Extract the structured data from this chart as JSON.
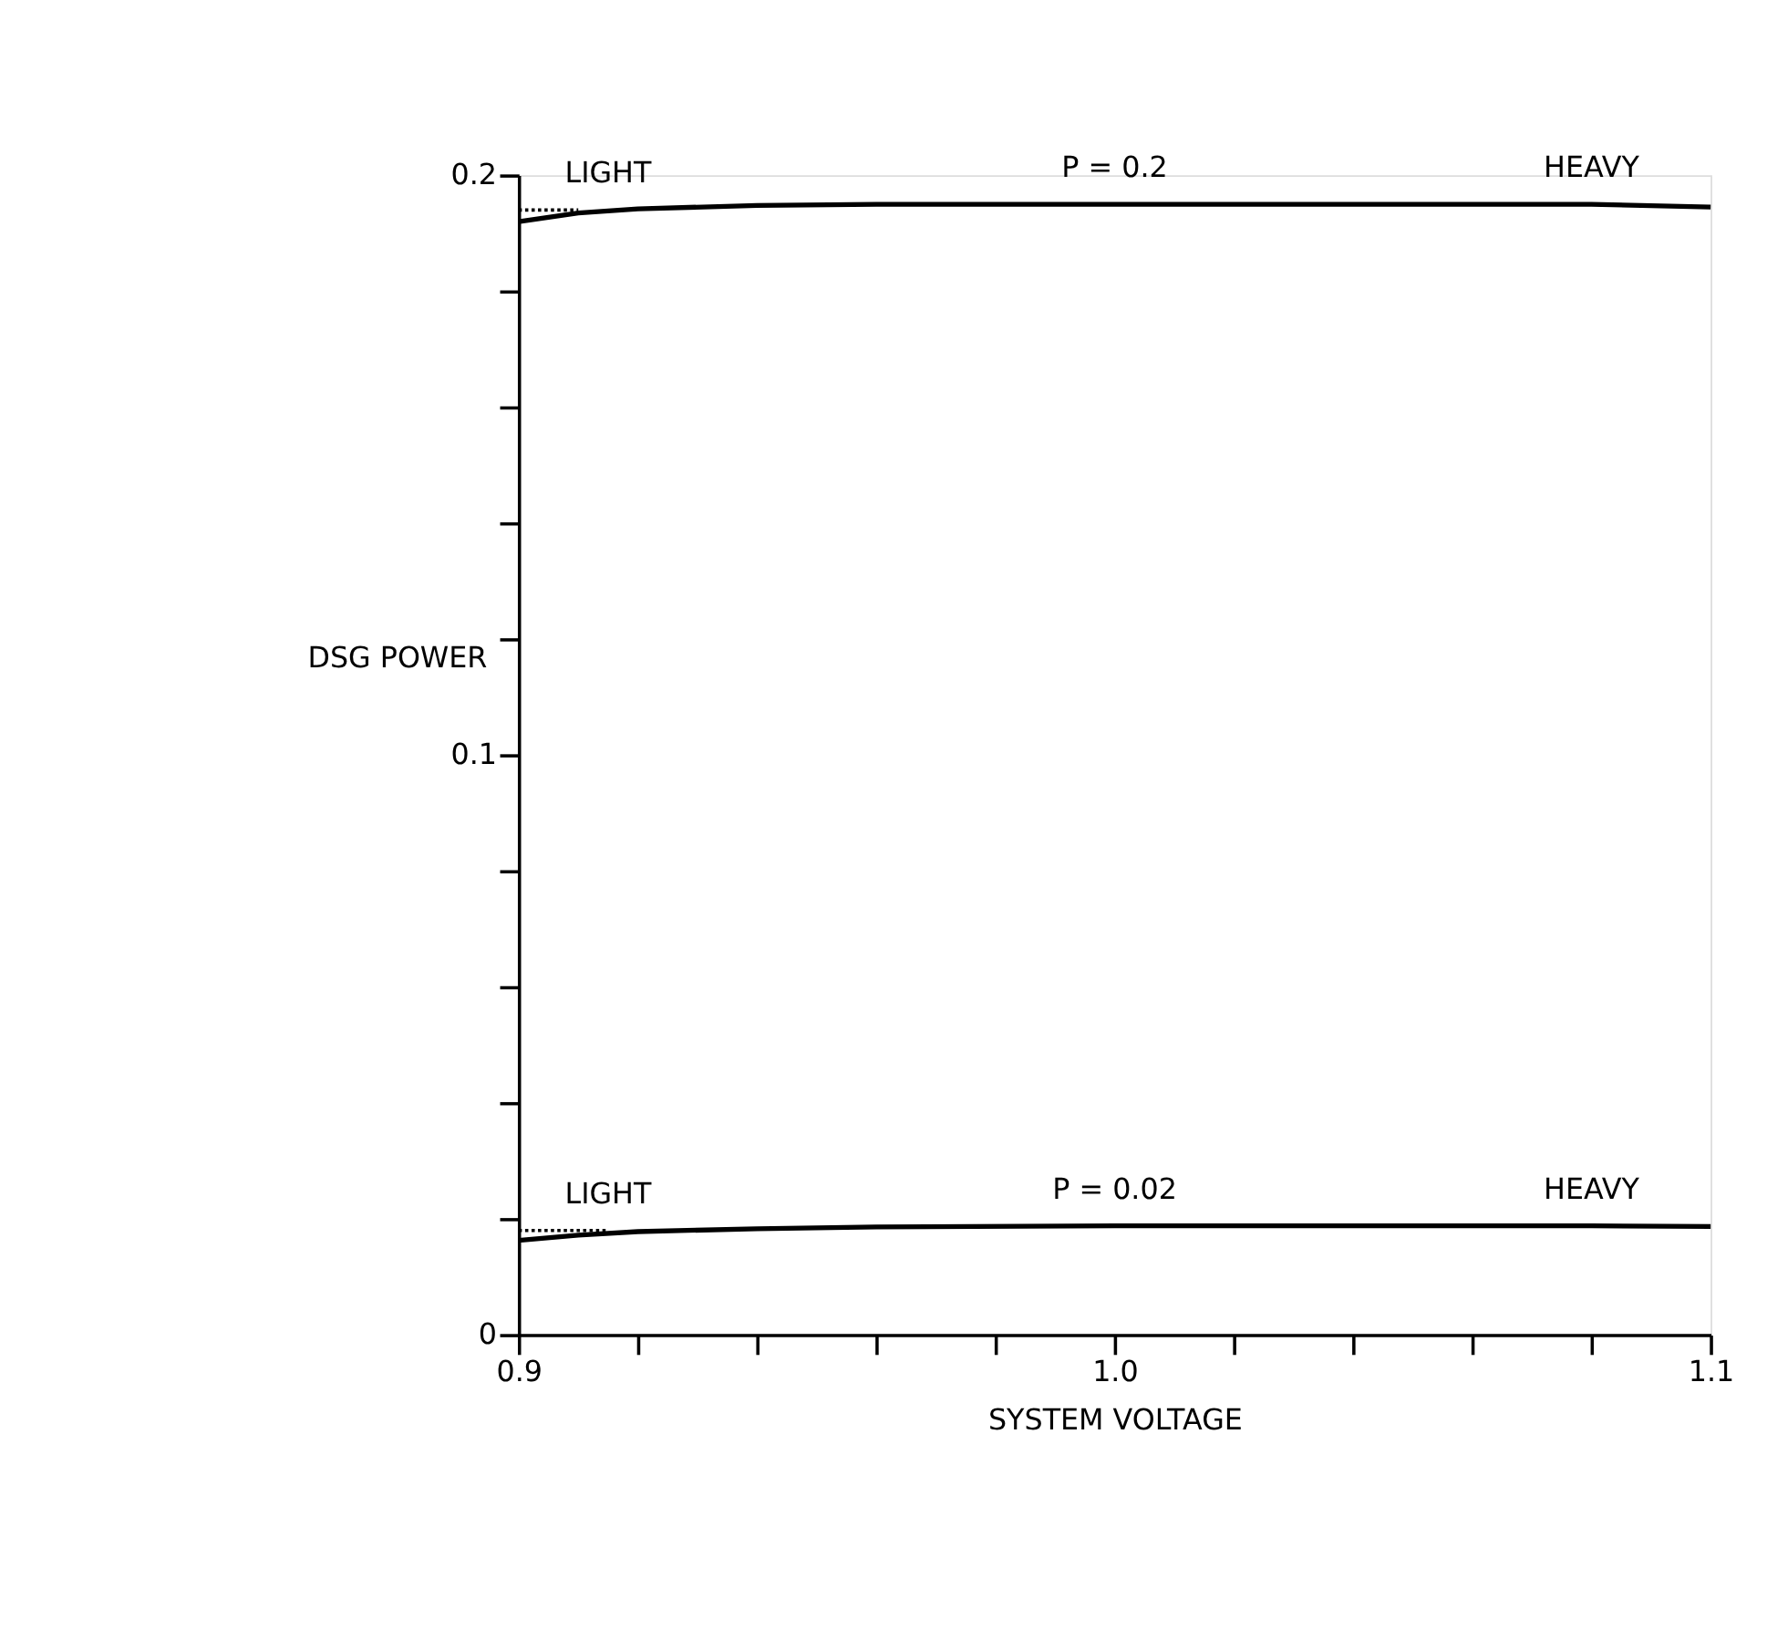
{
  "chart_data": {
    "type": "line",
    "xlabel": "SYSTEM VOLTAGE",
    "ylabel": "DSG POWER",
    "xlim": [
      0.9,
      1.1
    ],
    "ylim": [
      0,
      0.2
    ],
    "xticks": [
      {
        "value": 0.9,
        "label": "0.9"
      },
      {
        "value": 0.92,
        "label": null
      },
      {
        "value": 0.94,
        "label": null
      },
      {
        "value": 0.96,
        "label": null
      },
      {
        "value": 0.98,
        "label": null
      },
      {
        "value": 1.0,
        "label": "1.0"
      },
      {
        "value": 1.02,
        "label": null
      },
      {
        "value": 1.04,
        "label": null
      },
      {
        "value": 1.06,
        "label": null
      },
      {
        "value": 1.08,
        "label": null
      },
      {
        "value": 1.1,
        "label": "1.1"
      }
    ],
    "grid": false,
    "yticks": [
      0,
      {
        "value": 0.02,
        "label": null
      },
      {
        "value": 0.04,
        "label": null
      },
      {
        "value": 0.06,
        "label": null
      },
      {
        "value": 0.08,
        "label": null
      },
      0.1,
      {
        "value": 0.12,
        "label": null
      },
      {
        "value": 0.14,
        "label": null
      },
      {
        "value": 0.16,
        "label": null
      },
      {
        "value": 0.18,
        "label": null
      },
      0.2
    ],
    "series": [
      {
        "color": "#000000",
        "line_style": "solid",
        "x": [
          0.9,
          0.91,
          0.92,
          0.94,
          0.96,
          1.0,
          1.04,
          1.08,
          1.1
        ],
        "values": [
          0.192,
          0.1935,
          0.1942,
          0.1948,
          0.195,
          0.195,
          0.195,
          0.195,
          0.1945
        ]
      },
      {
        "color": "#000000",
        "line_style": "dotted",
        "x": [
          0.9,
          0.91
        ],
        "values": [
          0.194,
          0.194
        ]
      },
      {
        "color": "#000000",
        "line_style": "solid",
        "x": [
          0.9,
          0.91,
          0.92,
          0.94,
          0.96,
          1.0,
          1.04,
          1.08,
          1.1
        ],
        "values": [
          0.0163,
          0.0172,
          0.0178,
          0.0183,
          0.0186,
          0.0188,
          0.0188,
          0.0188,
          0.0187
        ]
      },
      {
        "color": "#000000",
        "line_style": "dotted",
        "x": [
          0.9,
          0.915
        ],
        "values": [
          0.018,
          0.018
        ]
      }
    ],
    "annotations": [
      {
        "text": "LIGHT",
        "x": 0.915,
        "y": 0.194
      },
      {
        "text": "P = 0.2",
        "x": 1.0,
        "y": 0.195
      },
      {
        "text": "HEAVY",
        "x": 1.08,
        "y": 0.195
      },
      {
        "text": "LIGHT",
        "x": 0.915,
        "y": 0.018
      },
      {
        "text": "P = 0.02",
        "x": 1.0,
        "y": 0.0188
      },
      {
        "text": "HEAVY",
        "x": 1.08,
        "y": 0.0188
      }
    ]
  }
}
